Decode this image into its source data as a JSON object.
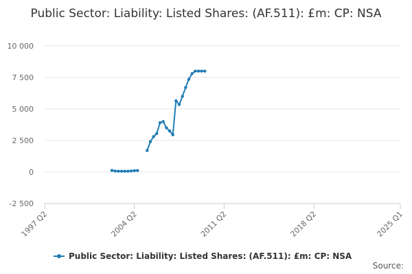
{
  "colors": {
    "series": "#1f7bb4",
    "grid": "#e6e6e6",
    "axis": "#cccccc"
  },
  "chart_data": {
    "type": "line",
    "title": "Public Sector: Liability: Listed Shares: (AF.511): £m: CP: NSA",
    "xlabel": "",
    "ylabel": "",
    "ylim": [
      -2500,
      10000
    ],
    "y_ticks": [
      -2500,
      0,
      2500,
      5000,
      7500,
      10000
    ],
    "y_tick_labels": [
      "-2 500",
      "0",
      "2 500",
      "5 000",
      "7 500",
      "10 000"
    ],
    "x_range": [
      "1997 Q2",
      "2025 Q1"
    ],
    "x_ticks": [
      "1997 Q2",
      "2004 Q2",
      "2011 Q2",
      "2018 Q2",
      "2025 Q1"
    ],
    "grid": true,
    "legend_position": "bottom",
    "series": [
      {
        "name": "Public Sector: Liability: Listed Shares: (AF.511): £m: CP: NSA",
        "segments": [
          {
            "x": [
              "2002 Q3",
              "2002 Q4",
              "2003 Q1",
              "2003 Q2",
              "2003 Q3",
              "2003 Q4",
              "2004 Q1",
              "2004 Q2",
              "2004 Q3"
            ],
            "y": [
              120,
              70,
              60,
              55,
              55,
              60,
              80,
              100,
              110
            ]
          },
          {
            "x": [
              "2005 Q2",
              "2005 Q3",
              "2005 Q4",
              "2006 Q1",
              "2006 Q2",
              "2006 Q3",
              "2006 Q4",
              "2007 Q1",
              "2007 Q2",
              "2007 Q3",
              "2007 Q4",
              "2008 Q1",
              "2008 Q2",
              "2008 Q3",
              "2008 Q4",
              "2009 Q1",
              "2009 Q2",
              "2009 Q3",
              "2009 Q4"
            ],
            "y": [
              1700,
              2400,
              2800,
              3050,
              3900,
              4000,
              3500,
              3250,
              2950,
              5650,
              5350,
              6000,
              6700,
              7350,
              7800,
              8000,
              8000,
              8000,
              8000
            ]
          }
        ]
      }
    ]
  },
  "footer": {
    "source_label": "Source:"
  }
}
